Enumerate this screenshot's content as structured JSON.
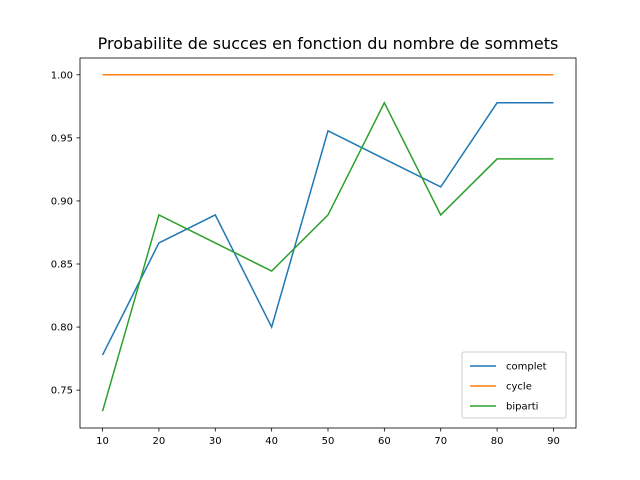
{
  "chart_data": {
    "type": "line",
    "title": "Probabilite de succes en fonction du nombre de sommets",
    "xlabel": "",
    "ylabel": "",
    "x": [
      10,
      20,
      30,
      40,
      50,
      60,
      70,
      80,
      90
    ],
    "xticks": [
      "10",
      "20",
      "30",
      "40",
      "50",
      "60",
      "70",
      "80",
      "90"
    ],
    "yticks": [
      "0.75",
      "0.80",
      "0.85",
      "0.90",
      "0.95",
      "1.00"
    ],
    "xlim": [
      6,
      94
    ],
    "ylim": [
      0.72,
      1.0133
    ],
    "grid": false,
    "legend_position": "lower-right",
    "series": [
      {
        "name": "complet",
        "color": "#1f77b4",
        "values": [
          0.7778,
          0.8667,
          0.8889,
          0.8,
          0.9556,
          0.9333,
          0.9111,
          0.9778,
          0.9778
        ]
      },
      {
        "name": "cycle",
        "color": "#ff7f0e",
        "values": [
          1.0,
          1.0,
          1.0,
          1.0,
          1.0,
          1.0,
          1.0,
          1.0,
          1.0
        ]
      },
      {
        "name": "biparti",
        "color": "#2ca02c",
        "values": [
          0.7333,
          0.8889,
          0.8667,
          0.8444,
          0.8889,
          0.9778,
          0.8889,
          0.9333,
          0.9333
        ]
      }
    ]
  }
}
